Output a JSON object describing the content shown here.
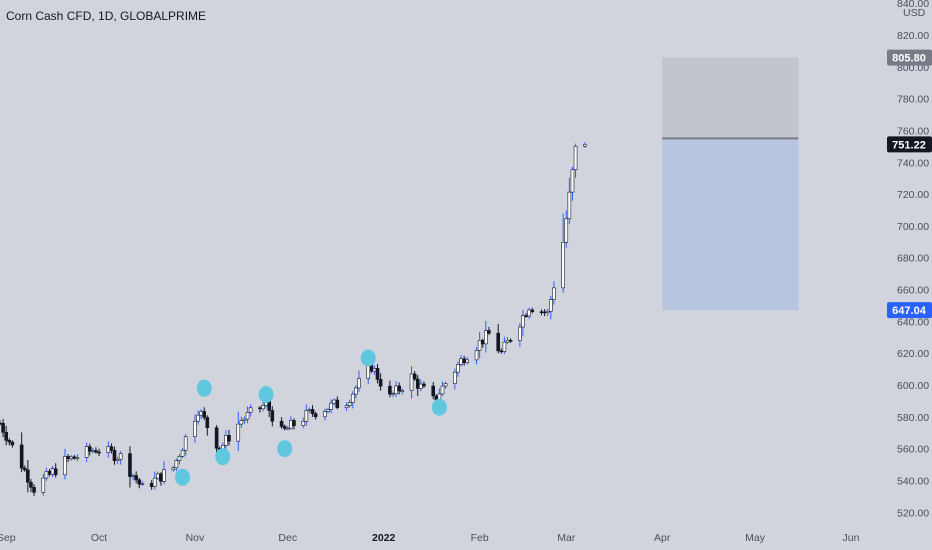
{
  "chart_data": {
    "type": "candlestick",
    "title": "Corn Cash CFD, 1D, GLOBALPRIME",
    "currency": "USD",
    "ylim": [
      512,
      842
    ],
    "y_ticks": [
      520,
      540,
      560,
      580,
      600,
      620,
      640,
      660,
      680,
      700,
      720,
      740,
      760,
      780,
      800,
      820,
      840
    ],
    "y_tick_labels": [
      "520.00",
      "540.00",
      "560.00",
      "580.00",
      "600.00",
      "620.00",
      "640.00",
      "660.00",
      "680.00",
      "700.00",
      "720.00",
      "740.00",
      "760.00",
      "780.00",
      "800.00",
      "820.00",
      "840.00"
    ],
    "x_axis_labels": [
      {
        "label": "Sep",
        "date": "2021-09-01"
      },
      {
        "label": "Oct",
        "date": "2021-10-01"
      },
      {
        "label": "Nov",
        "date": "2021-11-01"
      },
      {
        "label": "Dec",
        "date": "2021-12-01"
      },
      {
        "label": "2022",
        "date": "2022-01-01",
        "bold": true
      },
      {
        "label": "Feb",
        "date": "2022-02-01"
      },
      {
        "label": "Mar",
        "date": "2022-03-01"
      },
      {
        "label": "Apr",
        "date": "2022-04-01"
      },
      {
        "label": "May",
        "date": "2022-05-01"
      },
      {
        "label": "Jun",
        "date": "2022-06-01"
      }
    ],
    "x_range": [
      "2021-08-30",
      "2022-06-12"
    ],
    "control_points": [
      {
        "date": "2021-08-30",
        "close": 576
      },
      {
        "date": "2021-09-10",
        "close": 535
      },
      {
        "date": "2021-09-20",
        "close": 552
      },
      {
        "date": "2021-09-30",
        "close": 560
      },
      {
        "date": "2021-10-08",
        "close": 555
      },
      {
        "date": "2021-10-15",
        "close": 535
      },
      {
        "date": "2021-10-25",
        "close": 548
      },
      {
        "date": "2021-11-02",
        "close": 585
      },
      {
        "date": "2021-11-09",
        "close": 560
      },
      {
        "date": "2021-11-16",
        "close": 578
      },
      {
        "date": "2021-11-24",
        "close": 588
      },
      {
        "date": "2021-11-29",
        "close": 570
      },
      {
        "date": "2021-12-08",
        "close": 582
      },
      {
        "date": "2021-12-20",
        "close": 590
      },
      {
        "date": "2021-12-28",
        "close": 612
      },
      {
        "date": "2022-01-03",
        "close": 592
      },
      {
        "date": "2022-01-10",
        "close": 605
      },
      {
        "date": "2022-01-17",
        "close": 590
      },
      {
        "date": "2022-01-27",
        "close": 618
      },
      {
        "date": "2022-02-04",
        "close": 632
      },
      {
        "date": "2022-02-08",
        "close": 620
      },
      {
        "date": "2022-02-17",
        "close": 650
      },
      {
        "date": "2022-02-23",
        "close": 645
      },
      {
        "date": "2022-02-28",
        "close": 690
      },
      {
        "date": "2022-03-04",
        "close": 748
      },
      {
        "date": "2022-03-07",
        "close": 751.22
      }
    ],
    "last_price": {
      "value": 751.22,
      "label": "751.22",
      "color": "#131722"
    },
    "level_labels": [
      {
        "value": 805.8,
        "label": "805.80",
        "color": "#787b86"
      },
      {
        "value": 647.04,
        "label": "647.04",
        "color": "#2962ff"
      }
    ],
    "position_box": {
      "x_start": "2022-04-01",
      "x_end": "2022-05-15",
      "entry": 755,
      "top": 805.8,
      "bottom": 647.04,
      "upper_color": "#c3c5cc",
      "lower_color": "#b7c5e0",
      "line_color": "#787b86"
    },
    "markers": [
      {
        "date": "2021-10-28",
        "value": 542
      },
      {
        "date": "2021-11-04",
        "value": 598
      },
      {
        "date": "2021-11-10",
        "value": 555
      },
      {
        "date": "2021-11-24",
        "value": 594
      },
      {
        "date": "2021-11-30",
        "value": 560
      },
      {
        "date": "2021-12-27",
        "value": 617
      },
      {
        "date": "2022-01-19",
        "value": 586
      }
    ],
    "colors": {
      "background": "#d1d4dc",
      "up_body": "#ffffff",
      "down_body": "#131722",
      "wick_up": "#2962ff",
      "wick_down": "#131722",
      "marker": "#5fc8e0",
      "axis_text": "#4a4e5a"
    }
  }
}
